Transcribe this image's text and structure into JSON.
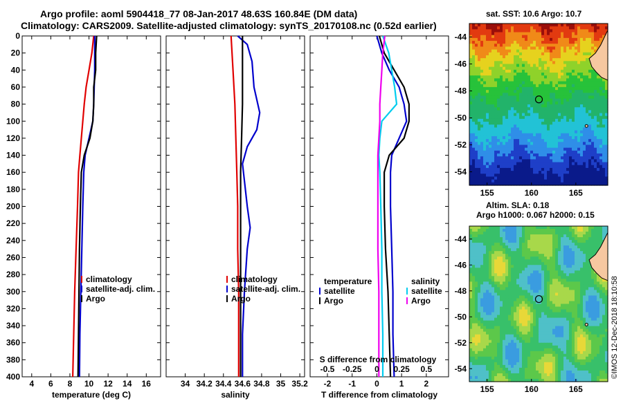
{
  "header": {
    "line1": "Argo profile: aoml 5904418_77 08-Jan-2017 48.63S 160.84E (DM data)",
    "line2": "Climatology: CARS2009. Satellite-adjusted climatology: synTS_20170108.nc (0.52d earlier)"
  },
  "colors": {
    "climatology": "#e00000",
    "satellite": "#0000cc",
    "argo": "#000000",
    "sal_diff_sat": "#00ccee",
    "sal_diff_argo": "#ee00ee"
  },
  "depth_axis": {
    "ticks": [
      "0",
      "20",
      "40",
      "60",
      "80",
      "100",
      "120",
      "140",
      "160",
      "180",
      "200",
      "220",
      "240",
      "260",
      "280",
      "300",
      "320",
      "340",
      "360",
      "380",
      "400"
    ]
  },
  "chart_data": [
    {
      "id": "temperature",
      "type": "line",
      "xlabel": "temperature (deg C)",
      "xlim": [
        3,
        17.5
      ],
      "ylim": [
        400,
        0
      ],
      "xticks": [
        4,
        6,
        8,
        10,
        12,
        14,
        16
      ],
      "xtick_labels": [
        "4",
        "6",
        "8",
        "10",
        "12",
        "14",
        "16"
      ],
      "legend": [
        "climatology",
        "satellite-adj. clim.",
        "Argo"
      ],
      "series": [
        {
          "name": "climatology",
          "color": "#e00000",
          "depth": [
            0,
            20,
            40,
            60,
            80,
            100,
            120,
            140,
            160,
            200,
            250,
            300,
            350,
            400
          ],
          "values": [
            10.5,
            10.3,
            10.0,
            9.7,
            9.5,
            9.35,
            9.2,
            9.05,
            8.9,
            8.8,
            8.65,
            8.5,
            8.4,
            8.3
          ]
        },
        {
          "name": "satellite-adj. clim.",
          "color": "#0000cc",
          "depth": [
            0,
            20,
            40,
            60,
            80,
            100,
            120,
            140,
            160,
            200,
            250,
            300,
            350,
            400
          ],
          "values": [
            10.6,
            10.6,
            10.6,
            10.55,
            10.5,
            10.4,
            10.0,
            9.6,
            9.45,
            9.35,
            9.25,
            9.15,
            9.05,
            9.0
          ]
        },
        {
          "name": "Argo",
          "color": "#000000",
          "depth": [
            0,
            20,
            40,
            60,
            80,
            100,
            120,
            140,
            160,
            200,
            250,
            300,
            350,
            400
          ],
          "values": [
            10.8,
            10.7,
            10.7,
            10.5,
            10.5,
            10.4,
            10.1,
            9.5,
            9.2,
            9.1,
            9.0,
            8.95,
            8.9,
            8.85
          ]
        }
      ]
    },
    {
      "id": "salinity",
      "type": "line",
      "xlabel": "salinity",
      "xlim": [
        33.8,
        35.25
      ],
      "ylim": [
        400,
        0
      ],
      "xticks": [
        34,
        34.2,
        34.4,
        34.6,
        34.8,
        35,
        35.2
      ],
      "xtick_labels": [
        "34",
        "34.2",
        "34.4",
        "34.6",
        "34.8",
        "35",
        "35.2"
      ],
      "legend": [
        "climatology",
        "satellite-adj. clim.",
        "Argo"
      ],
      "series": [
        {
          "name": "climatology",
          "color": "#e00000",
          "depth": [
            0,
            40,
            80,
            120,
            160,
            200,
            250,
            300,
            350,
            400
          ],
          "values": [
            34.48,
            34.5,
            34.52,
            34.53,
            34.54,
            34.55,
            34.55,
            34.56,
            34.56,
            34.56
          ]
        },
        {
          "name": "satellite-adj. clim.",
          "color": "#0000cc",
          "depth": [
            0,
            10,
            30,
            60,
            90,
            110,
            130,
            150,
            170,
            200,
            225,
            250,
            300,
            350,
            400
          ],
          "values": [
            34.55,
            34.65,
            34.7,
            34.72,
            34.78,
            34.75,
            34.65,
            34.6,
            34.62,
            34.65,
            34.68,
            34.65,
            34.62,
            34.6,
            34.6
          ]
        },
        {
          "name": "Argo",
          "color": "#000000",
          "depth": [
            0,
            40,
            80,
            120,
            160,
            200,
            250,
            300,
            350,
            400
          ],
          "values": [
            34.6,
            34.6,
            34.6,
            34.59,
            34.58,
            34.58,
            34.58,
            34.58,
            34.58,
            34.58
          ]
        }
      ]
    },
    {
      "id": "difference",
      "type": "line",
      "xlabel": "T difference from climatology",
      "top_xlabel": "S difference from climatology",
      "xlim": [
        -2.7,
        2.9
      ],
      "ylim": [
        400,
        0
      ],
      "xticks": [
        -2,
        -1,
        0,
        1,
        2
      ],
      "xtick_labels": [
        "-2",
        "-1",
        "0",
        "1",
        "2"
      ],
      "s_xticks": [
        -0.5,
        -0.25,
        0,
        0.25,
        0.5
      ],
      "s_xtick_labels": [
        "-0.5",
        "-0.25",
        "0",
        "0.25",
        "0.5"
      ],
      "s_scale": 4,
      "legend_temperature": {
        "title": "temperature",
        "items": [
          "satellite",
          "Argo"
        ]
      },
      "legend_salinity": {
        "title": "salinity",
        "items": [
          "satellite",
          "Argo"
        ]
      },
      "series": [
        {
          "name": "T satellite",
          "color": "#0000cc",
          "depth": [
            0,
            20,
            40,
            60,
            80,
            100,
            120,
            140,
            160,
            200,
            250,
            300,
            350,
            400
          ],
          "values": [
            0.0,
            0.2,
            0.5,
            0.9,
            1.1,
            1.2,
            0.9,
            0.6,
            0.55,
            0.55,
            0.6,
            0.65,
            0.65,
            0.7
          ]
        },
        {
          "name": "T Argo",
          "color": "#000000",
          "depth": [
            0,
            20,
            40,
            60,
            80,
            100,
            120,
            140,
            160,
            200,
            250,
            300,
            350,
            400
          ],
          "values": [
            0.1,
            0.3,
            0.7,
            1.1,
            1.3,
            1.3,
            1.1,
            0.5,
            0.3,
            0.3,
            0.35,
            0.45,
            0.5,
            0.55
          ]
        },
        {
          "name": "S satellite",
          "color": "#00ccee",
          "depth": [
            0,
            20,
            40,
            60,
            80,
            100,
            120,
            140,
            160,
            200,
            250,
            300,
            350,
            400
          ],
          "values": [
            0.06,
            0.12,
            0.15,
            0.18,
            0.2,
            0.05,
            0.03,
            0.02,
            0.03,
            0.04,
            0.05,
            0.05,
            0.06,
            0.06
          ]
        },
        {
          "name": "S Argo",
          "color": "#ee00ee",
          "depth": [
            0,
            20,
            40,
            60,
            80,
            100,
            120,
            140,
            160,
            200,
            250,
            300,
            350,
            400
          ],
          "values": [
            0.08,
            0.06,
            0.05,
            0.04,
            0.03,
            0.03,
            0.02,
            0.01,
            0.01,
            0.01,
            0.01,
            0.02,
            0.02,
            0.02
          ]
        }
      ]
    }
  ],
  "maps": [
    {
      "id": "sst",
      "type": "heatmap",
      "title": "sat. SST: 10.6 Argo: 10.7",
      "lon_ticks": [
        "155",
        "160",
        "165"
      ],
      "lat_ticks": [
        "-44",
        "-46",
        "-48",
        "-50",
        "-52",
        "-54"
      ]
    },
    {
      "id": "sla",
      "type": "heatmap",
      "title": "Altim. SLA: 0.18",
      "subtitle": "Argo h1000: 0.067 h2000: 0.15",
      "lon_ticks": [
        "155",
        "160",
        "165"
      ],
      "lat_ticks": [
        "-44",
        "-46",
        "-48",
        "-50",
        "-52",
        "-54"
      ]
    }
  ],
  "stamp": "©IMOS 12-Dec-2018 18:10:58"
}
